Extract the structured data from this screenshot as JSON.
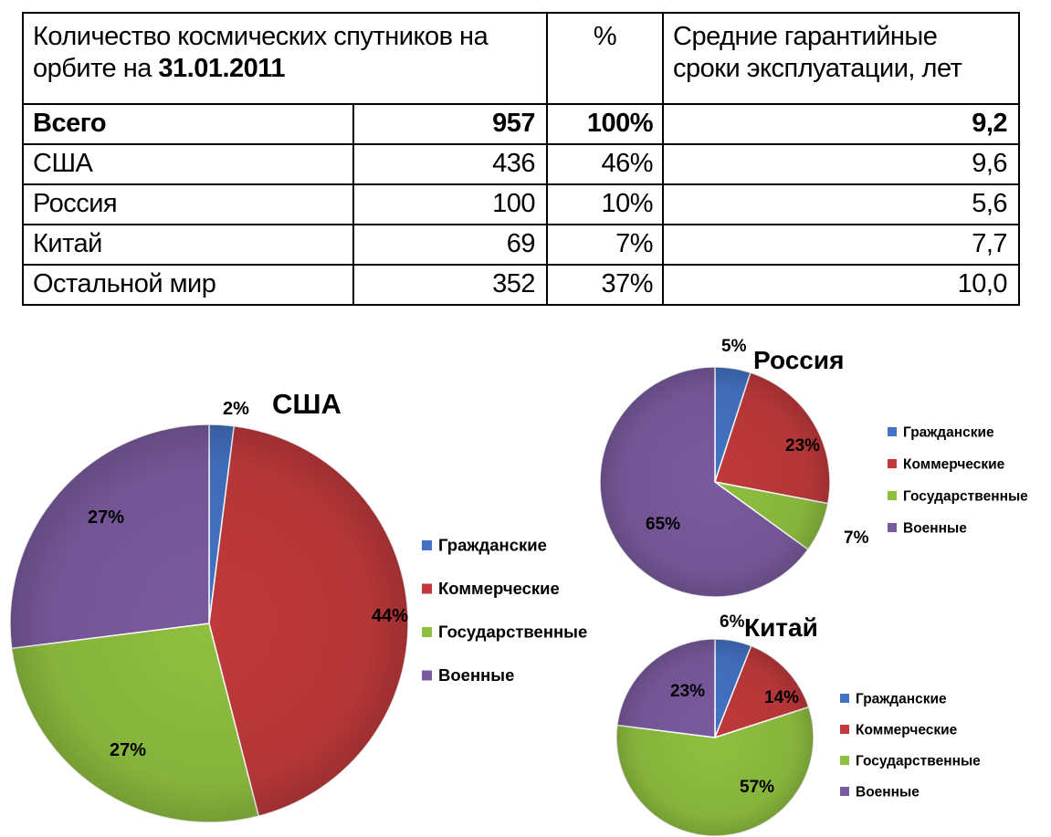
{
  "table": {
    "header": {
      "col1_line1": "Количество космических спутников на",
      "col1_line2_prefix": "орбите на ",
      "col1_date": "31.01.2011",
      "col2": "%",
      "col3_line1": "Средние гарантийные",
      "col3_line2": "сроки эксплуатации, лет"
    },
    "rows": [
      {
        "name": "Всего",
        "count": "957",
        "pct": "100%",
        "life": "9,2"
      },
      {
        "name": "США",
        "count": "436",
        "pct": "46%",
        "life": "9,6"
      },
      {
        "name": "Россия",
        "count": "100",
        "pct": "10%",
        "life": "5,6"
      },
      {
        "name": "Китай",
        "count": "69",
        "pct": "7%",
        "life": "7,7"
      },
      {
        "name": "Остальной мир",
        "count": "352",
        "pct": "37%",
        "life": "10,0"
      }
    ]
  },
  "colors": {
    "civil": "#4472c4",
    "commercial": "#c0393b",
    "government": "#8fbf3f",
    "military": "#7a5a9e"
  },
  "chart_data": [
    {
      "type": "pie",
      "title": "США",
      "categories": [
        "Гражданские",
        "Коммерческие",
        "Государственные",
        "Военные"
      ],
      "values": [
        2,
        44,
        27,
        27
      ],
      "labels": [
        "2%",
        "44%",
        "27%",
        "27%"
      ],
      "legend": "right"
    },
    {
      "type": "pie",
      "title": "Россия",
      "categories": [
        "Гражданские",
        "Коммерческие",
        "Государственные",
        "Военные"
      ],
      "values": [
        5,
        23,
        7,
        65
      ],
      "labels": [
        "5%",
        "23%",
        "7%",
        "65%"
      ],
      "legend": "right"
    },
    {
      "type": "pie",
      "title": "Китай",
      "categories": [
        "Гражданские",
        "Коммерческие",
        "Государственные",
        "Военные"
      ],
      "values": [
        6,
        14,
        57,
        23
      ],
      "labels": [
        "6%",
        "14%",
        "57%",
        "23%"
      ],
      "legend": "right"
    }
  ]
}
